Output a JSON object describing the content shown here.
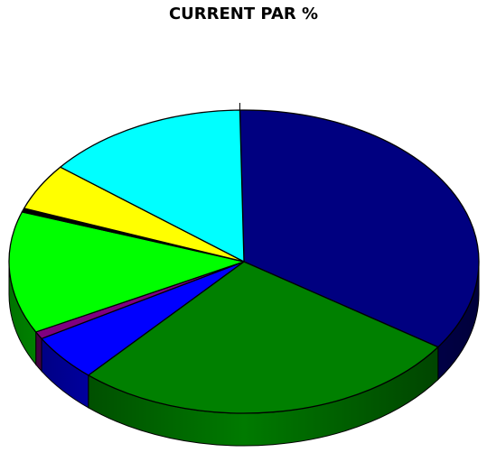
{
  "chart_data": {
    "type": "pie",
    "title": "CURRENT PAR %",
    "three_d": true,
    "legend": "none",
    "slices": [
      {
        "value": 34.8,
        "color": "#000080"
      },
      {
        "value": 27.0,
        "color": "#008000"
      },
      {
        "value": 5.0,
        "color": "#0000ff"
      },
      {
        "value": 0.8,
        "color": "#800080"
      },
      {
        "value": 13.0,
        "color": "#00ff00"
      },
      {
        "value": 0.4,
        "color": "#000000"
      },
      {
        "value": 5.0,
        "color": "#ffff00"
      },
      {
        "value": 14.0,
        "color": "#00ffff"
      }
    ]
  }
}
